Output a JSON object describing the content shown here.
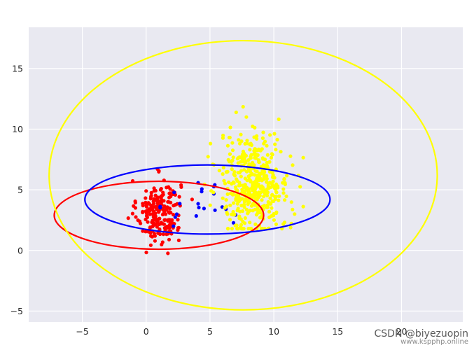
{
  "chart_data": {
    "type": "scatter",
    "title": "",
    "xlabel": "",
    "ylabel": "",
    "xlim": [
      -9.2,
      24.8
    ],
    "ylim": [
      -5.9,
      18.4
    ],
    "grid": true,
    "background": "#e9e9f1",
    "grid_color": "#ffffff",
    "x_ticks": [
      -5,
      0,
      5,
      10,
      15,
      20
    ],
    "y_ticks": [
      -5,
      0,
      5,
      10,
      15
    ],
    "x_tick_labels": [
      "−5",
      "0",
      "5",
      "10",
      "15",
      "20"
    ],
    "y_tick_labels": [
      "−5",
      "0",
      "5",
      "10",
      "15"
    ],
    "clusters": [
      {
        "color": "#ff0000",
        "n": 230,
        "center": [
          1.0,
          3.2
        ],
        "spread": [
          0.85,
          1.3
        ],
        "range_x": [
          -2.2,
          3.6
        ],
        "range_y": [
          -1.2,
          6.9
        ]
      },
      {
        "color": "#0000ff",
        "n": 22,
        "center": [
          4.5,
          3.5
        ],
        "spread": [
          1.6,
          1.1
        ],
        "range_x": [
          1.1,
          7.1
        ],
        "range_y": [
          2.0,
          6.4
        ]
      },
      {
        "color": "#ffff00",
        "n": 470,
        "center": [
          8.5,
          5.5
        ],
        "spread": [
          1.35,
          2.1
        ],
        "range_x": [
          2.4,
          12.3
        ],
        "range_y": [
          1.8,
          12.7
        ]
      }
    ],
    "ellipses": [
      {
        "color": "#ff0000",
        "center": [
          1.0,
          2.9
        ],
        "rx": 8.2,
        "ry": 2.8
      },
      {
        "color": "#0000ff",
        "center": [
          4.8,
          4.2
        ],
        "rx": 9.6,
        "ry": 2.85
      },
      {
        "color": "#ffff00",
        "center": [
          7.6,
          6.2
        ],
        "rx": 15.2,
        "ry": 11.1
      }
    ]
  },
  "watermark": {
    "main": "CSDN @biyezuopin",
    "sub": "www.kspphp.online"
  }
}
